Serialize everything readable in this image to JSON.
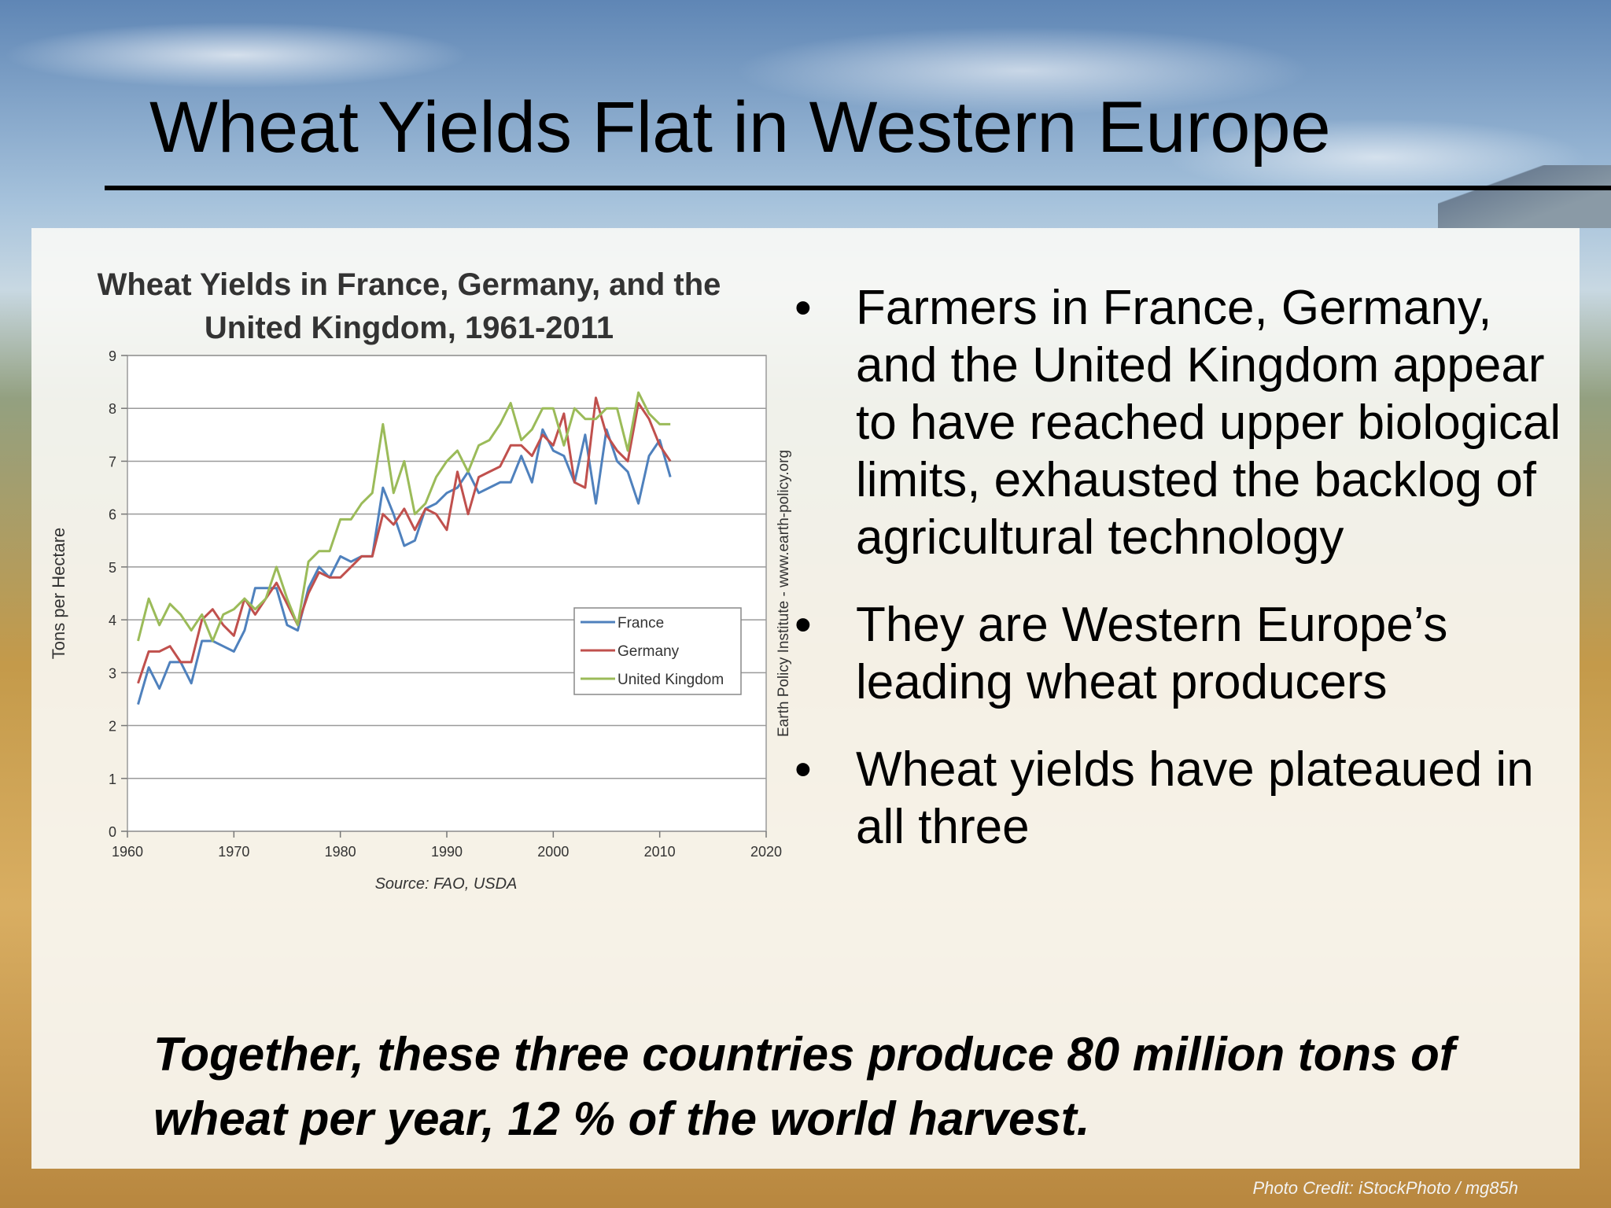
{
  "slide": {
    "title": "Wheat Yields Flat in Western Europe",
    "bullets": [
      "Farmers in France, Germany, and the United Kingdom appear to have reached upper biological limits, exhausted the backlog of agricultural technology",
      "They are Western Europe’s leading wheat producers",
      "Wheat yields have plateaued in all three"
    ],
    "footer": "Together, these three countries produce 80 million tons of wheat per year, 12 % of the world harvest.",
    "photo_credit": "Photo Credit: iStockPhoto / mg85h"
  },
  "chart_data": {
    "type": "line",
    "title": "Wheat Yields in France, Germany, and the United Kingdom, 1961-2011",
    "xlabel": "",
    "ylabel": "Tons per Hectare",
    "source": "Source: FAO, USDA",
    "side_note": "Earth Policy Institute - www.earth-policy.org",
    "xlim": [
      1960,
      2020
    ],
    "ylim": [
      0,
      9
    ],
    "xticks": [
      1960,
      1970,
      1980,
      1990,
      2000,
      2010,
      2020
    ],
    "yticks": [
      0,
      1,
      2,
      3,
      4,
      5,
      6,
      7,
      8,
      9
    ],
    "grid": true,
    "legend_position": "right-middle",
    "x": [
      1961,
      1962,
      1963,
      1964,
      1965,
      1966,
      1967,
      1968,
      1969,
      1970,
      1971,
      1972,
      1973,
      1974,
      1975,
      1976,
      1977,
      1978,
      1979,
      1980,
      1981,
      1982,
      1983,
      1984,
      1985,
      1986,
      1987,
      1988,
      1989,
      1990,
      1991,
      1992,
      1993,
      1994,
      1995,
      1996,
      1997,
      1998,
      1999,
      2000,
      2001,
      2002,
      2003,
      2004,
      2005,
      2006,
      2007,
      2008,
      2009,
      2010,
      2011
    ],
    "series": [
      {
        "name": "France",
        "color": "#4f81bd",
        "values": [
          2.4,
          3.1,
          2.7,
          3.2,
          3.2,
          2.8,
          3.6,
          3.6,
          3.5,
          3.4,
          3.8,
          4.6,
          4.6,
          4.6,
          3.9,
          3.8,
          4.6,
          5.0,
          4.8,
          5.2,
          5.1,
          5.2,
          5.2,
          6.5,
          6.0,
          5.4,
          5.5,
          6.1,
          6.2,
          6.4,
          6.5,
          6.8,
          6.4,
          6.5,
          6.6,
          6.6,
          7.1,
          6.6,
          7.6,
          7.2,
          7.1,
          6.6,
          7.5,
          6.2,
          7.6,
          7.0,
          6.8,
          6.2,
          7.1,
          7.4,
          6.7
        ]
      },
      {
        "name": "Germany",
        "color": "#c0504d",
        "values": [
          2.8,
          3.4,
          3.4,
          3.5,
          3.2,
          3.2,
          4.0,
          4.2,
          3.9,
          3.7,
          4.4,
          4.1,
          4.4,
          4.7,
          4.3,
          3.9,
          4.5,
          4.9,
          4.8,
          4.8,
          5.0,
          5.2,
          5.2,
          6.0,
          5.8,
          6.1,
          5.7,
          6.1,
          6.0,
          5.7,
          6.8,
          6.0,
          6.7,
          6.8,
          6.9,
          7.3,
          7.3,
          7.1,
          7.5,
          7.3,
          7.9,
          6.6,
          6.5,
          8.2,
          7.5,
          7.2,
          7.0,
          8.1,
          7.8,
          7.3,
          7.0
        ]
      },
      {
        "name": "United Kingdom",
        "color": "#9bbb59",
        "values": [
          3.6,
          4.4,
          3.9,
          4.3,
          4.1,
          3.8,
          4.1,
          3.6,
          4.1,
          4.2,
          4.4,
          4.2,
          4.4,
          5.0,
          4.4,
          3.9,
          5.1,
          5.3,
          5.3,
          5.9,
          5.9,
          6.2,
          6.4,
          7.7,
          6.4,
          7.0,
          6.0,
          6.2,
          6.7,
          7.0,
          7.2,
          6.8,
          7.3,
          7.4,
          7.7,
          8.1,
          7.4,
          7.6,
          8.0,
          8.0,
          7.3,
          8.0,
          7.8,
          7.8,
          8.0,
          8.0,
          7.2,
          8.3,
          7.9,
          7.7,
          7.7
        ]
      }
    ]
  }
}
